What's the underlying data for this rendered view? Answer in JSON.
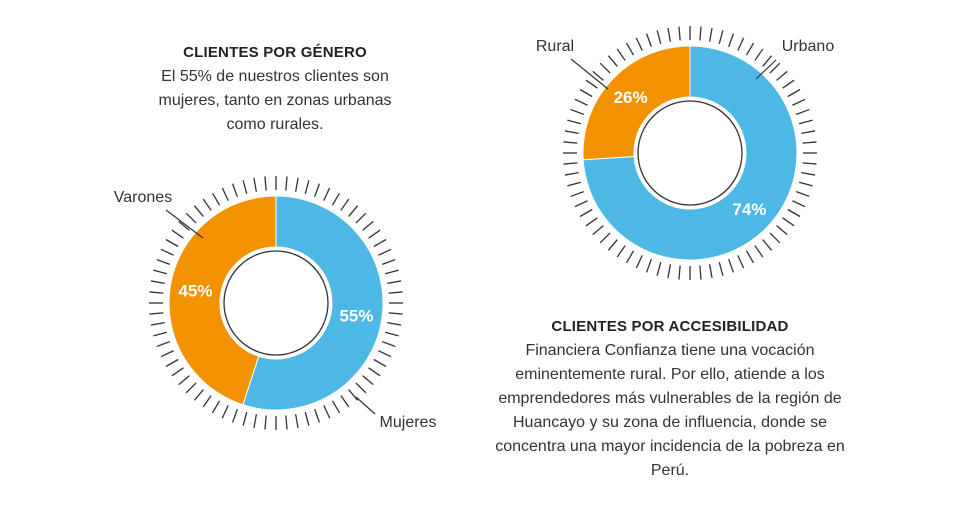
{
  "colors": {
    "orange": "#F39200",
    "blue": "#4DB8E6",
    "ticks": "#333333"
  },
  "chart_data": [
    {
      "type": "pie",
      "title": "CLIENTES POR GÉNERO",
      "description": "El 55% de nuestros clientes son mujeres, tanto en zonas urbanas como rurales.",
      "slices": [
        {
          "name": "Varones",
          "value": 45,
          "label": "45%",
          "color": "#F39200"
        },
        {
          "name": "Mujeres",
          "value": 55,
          "label": "55%",
          "color": "#4DB8E6"
        }
      ]
    },
    {
      "type": "pie",
      "title": "CLIENTES POR ACCESIBILIDAD",
      "description": "Financiera Confianza tiene una vocación eminentemente rural. Por ello, atiende a los emprendedores más vulnerables de la región de Huancayo y su zona de influencia, donde se concentra una mayor incidencia de la pobreza en Perú.",
      "slices": [
        {
          "name": "Rural",
          "value": 26,
          "label": "26%",
          "color": "#F39200"
        },
        {
          "name": "Urbano",
          "value": 74,
          "label": "74%",
          "color": "#4DB8E6"
        }
      ]
    }
  ]
}
